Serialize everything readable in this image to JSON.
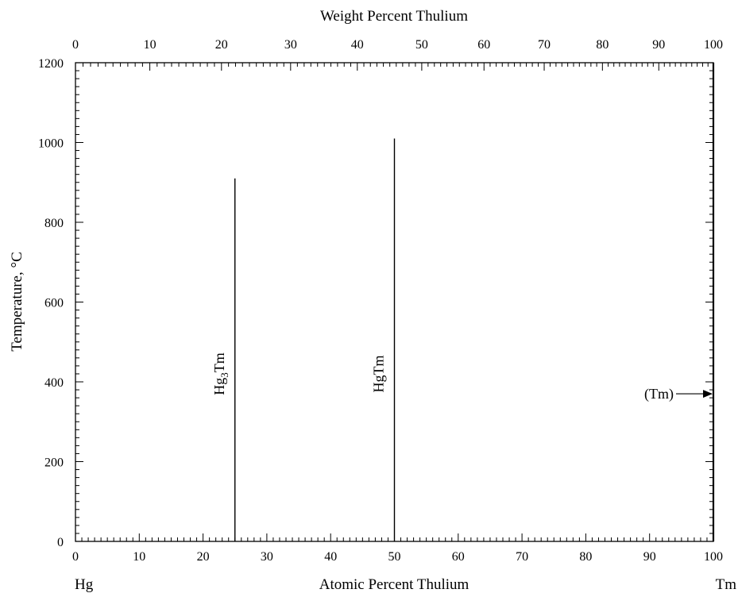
{
  "chart_data": {
    "type": "line",
    "title": "",
    "top_axis": {
      "label": "Weight Percent Thulium",
      "ticks": [
        0,
        10,
        20,
        30,
        40,
        50,
        60,
        70,
        80,
        90,
        100
      ]
    },
    "bottom_axis": {
      "label": "Atomic Percent Thulium",
      "ticks": [
        0,
        10,
        20,
        30,
        40,
        50,
        60,
        70,
        80,
        90,
        100
      ],
      "xlim": [
        0,
        100
      ]
    },
    "y_axis": {
      "label": "Temperature, °C",
      "ticks": [
        0,
        200,
        400,
        600,
        800,
        1000,
        1200
      ],
      "ylim": [
        0,
        1200
      ]
    },
    "end_labels": {
      "left": "Hg",
      "right": "Tm"
    },
    "phases": [
      {
        "name": "Hg3Tm",
        "base": "Hg",
        "sub": "3",
        "tail": "Tm",
        "x_at": 25,
        "y_max": 910,
        "label_y": 420
      },
      {
        "name": "HgTm",
        "base": "HgTm",
        "sub": "",
        "tail": "",
        "x_at": 50,
        "y_max": 1010,
        "label_y": 420
      }
    ],
    "annotation": {
      "text": "(Tm)",
      "x_at": 100,
      "y_at": 370
    },
    "grid": false,
    "legend": "none"
  }
}
